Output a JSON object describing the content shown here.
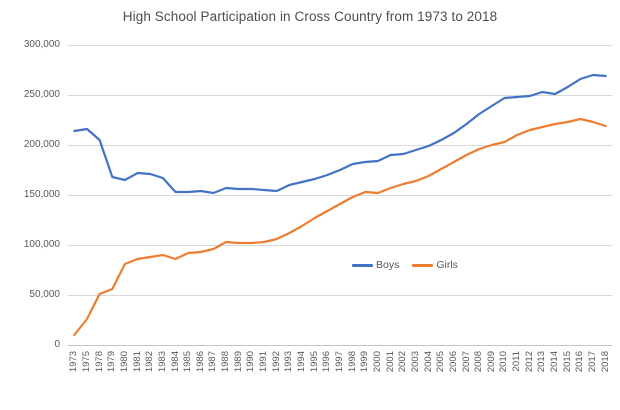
{
  "title": "High School Participation in Cross Country from 1973 to 2018",
  "legend": {
    "items": [
      {
        "label": "Boys",
        "color": "#4472C4"
      },
      {
        "label": "Girls",
        "color": "#ED7D31"
      }
    ]
  },
  "y_axis": {
    "tick_labels": [
      "300,000",
      "250,000",
      "200,000",
      "150,000",
      "100,000",
      "50,000",
      "0"
    ]
  },
  "colors": {
    "gridline": "#d9d9d9",
    "axis_line": "#c3c3c3",
    "tick_text": "#595959"
  },
  "chart_data": {
    "type": "line",
    "title": "High School Participation in Cross Country from 1973 to 2018",
    "categories": [
      "1973",
      "1975",
      "1978",
      "1979",
      "1980",
      "1981",
      "1982",
      "1983",
      "1984",
      "1985",
      "1986",
      "1987",
      "1988",
      "1989",
      "1990",
      "1991",
      "1992",
      "1993",
      "1994",
      "1995",
      "1996",
      "1997",
      "1998",
      "1999",
      "2000",
      "2001",
      "2002",
      "2003",
      "2004",
      "2005",
      "2006",
      "2007",
      "2008",
      "2009",
      "2010",
      "2011",
      "2012",
      "2013",
      "2014",
      "2015",
      "2016",
      "2017",
      "2018"
    ],
    "series": [
      {
        "name": "Boys",
        "color": "#4472C4",
        "values": [
          214000,
          216000,
          205000,
          168000,
          165000,
          172000,
          171000,
          167000,
          153000,
          153000,
          154000,
          152000,
          157000,
          156000,
          156000,
          155000,
          154000,
          160000,
          163000,
          166000,
          170000,
          175000,
          181000,
          183000,
          184000,
          190000,
          191000,
          195000,
          199000,
          205000,
          212000,
          221000,
          231000,
          239000,
          247000,
          248000,
          249000,
          253000,
          251000,
          258000,
          266000,
          270000,
          269000
        ]
      },
      {
        "name": "Girls",
        "color": "#ED7D31",
        "values": [
          10000,
          26000,
          51000,
          56000,
          81000,
          86000,
          88000,
          90000,
          86000,
          92000,
          93000,
          96000,
          103000,
          102000,
          102000,
          103000,
          106000,
          112000,
          119000,
          127000,
          134000,
          141000,
          148000,
          153000,
          152000,
          157000,
          161000,
          164000,
          169000,
          176000,
          183000,
          190000,
          196000,
          200000,
          203000,
          210000,
          215000,
          218000,
          221000,
          223000,
          226000,
          223000,
          219000
        ]
      }
    ],
    "ylim": [
      0,
      300000
    ],
    "ytick_step": 50000,
    "xlabel": "",
    "ylabel": "",
    "grid": "horizontal",
    "legend_position": "inside-lower-right"
  }
}
